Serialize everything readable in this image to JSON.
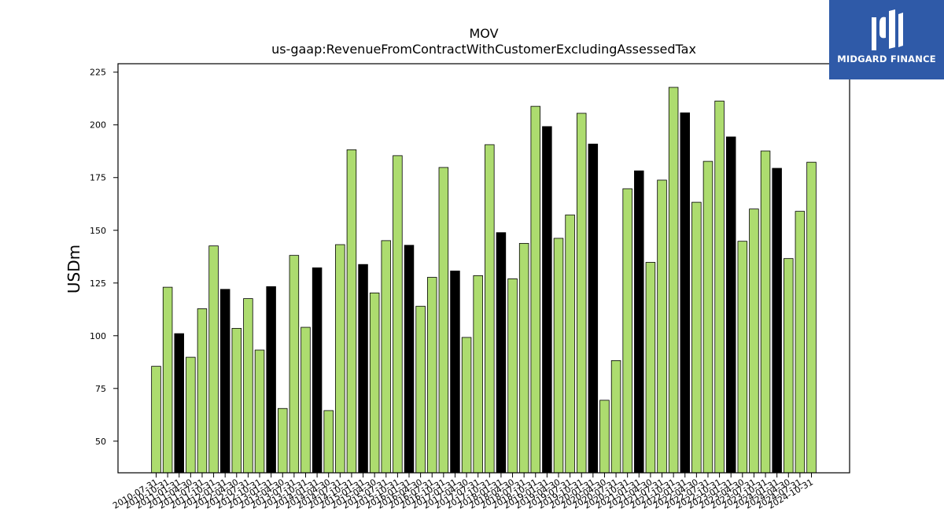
{
  "chart_data": {
    "type": "bar",
    "title": "MOV",
    "subtitle": "us-gaap:RevenueFromContractWithCustomerExcludingAssessedTax",
    "ylabel": "USDm",
    "xlabel": "",
    "ylim": [
      35,
      229
    ],
    "yticks": [
      50,
      75,
      100,
      125,
      150,
      175,
      200,
      225
    ],
    "grid": false,
    "colors": {
      "regular": "#addc6f",
      "highlight": "#000000",
      "edge": "#000000"
    },
    "categories": [
      "2010-07-31",
      "2010-10-31",
      "2011-01-31",
      "2011-04-30",
      "2011-07-31",
      "2011-10-31",
      "2012-01-31",
      "2012-04-30",
      "2012-07-31",
      "2012-10-31",
      "2013-01-31",
      "2013-04-30",
      "2013-07-31",
      "2013-10-31",
      "2014-01-31",
      "2014-04-30",
      "2014-07-31",
      "2014-10-31",
      "2015-01-31",
      "2015-04-30",
      "2015-07-31",
      "2015-10-31",
      "2016-01-31",
      "2016-04-30",
      "2016-07-31",
      "2016-10-31",
      "2017-01-31",
      "2017-04-30",
      "2017-07-31",
      "2017-10-31",
      "2018-01-31",
      "2018-04-30",
      "2018-07-31",
      "2018-10-31",
      "2019-01-31",
      "2019-04-30",
      "2019-07-31",
      "2019-10-31",
      "2020-01-31",
      "2020-04-30",
      "2020-07-31",
      "2020-10-31",
      "2021-01-31",
      "2021-04-30",
      "2021-07-31",
      "2021-10-31",
      "2022-01-31",
      "2022-04-30",
      "2022-07-31",
      "2022-10-31",
      "2023-01-31",
      "2023-04-30",
      "2023-07-31",
      "2023-10-31",
      "2024-01-31",
      "2024-04-30",
      "2024-07-31",
      "2024-10-31"
    ],
    "values": [
      85.5,
      123.0,
      101.0,
      89.8,
      112.8,
      142.6,
      122.0,
      103.5,
      117.6,
      93.2,
      123.3,
      65.5,
      138.1,
      104.0,
      132.2,
      64.5,
      143.2,
      188.2,
      133.8,
      120.3,
      145.1,
      185.4,
      142.9,
      114.0,
      127.7,
      179.8,
      130.7,
      99.2,
      128.5,
      190.6,
      148.9,
      127.0,
      143.8,
      208.8,
      199.2,
      146.2,
      157.3,
      205.5,
      190.9,
      69.4,
      88.2,
      169.7,
      178.2,
      134.8,
      173.8,
      217.8,
      205.7,
      163.3,
      182.7,
      211.3,
      194.3,
      144.8,
      160.1,
      187.6,
      179.4,
      136.6,
      159.0,
      182.3
    ],
    "highlight": [
      false,
      false,
      true,
      false,
      false,
      false,
      true,
      false,
      false,
      false,
      true,
      false,
      false,
      false,
      true,
      false,
      false,
      false,
      true,
      false,
      false,
      false,
      true,
      false,
      false,
      false,
      true,
      false,
      false,
      false,
      true,
      false,
      false,
      false,
      true,
      false,
      false,
      false,
      true,
      false,
      false,
      false,
      true,
      false,
      false,
      false,
      true,
      false,
      false,
      false,
      true,
      false,
      false,
      false,
      true,
      false,
      false,
      false
    ]
  },
  "logo": {
    "text": "MIDGARD FINANCE",
    "icon": "midgard-logo-icon"
  }
}
